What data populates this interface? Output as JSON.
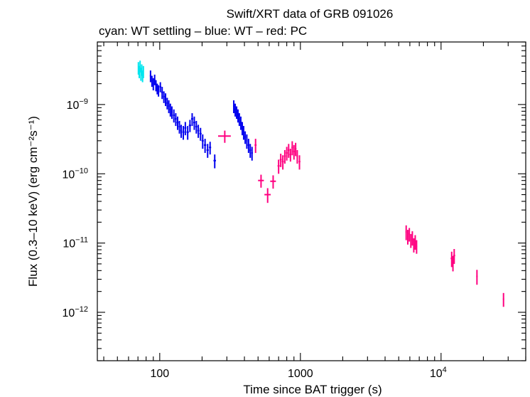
{
  "chart_data": {
    "type": "scatter",
    "title": "Swift/XRT data of GRB 091026",
    "subtitle": "cyan: WT settling – blue: WT – red: PC",
    "xlabel": "Time since BAT trigger (s)",
    "ylabel": "Flux (0.3–10 keV) (erg cm⁻²s⁻¹)",
    "x_scale": "log",
    "y_scale": "log",
    "xlim": [
      36,
      40000
    ],
    "ylim": [
      2e-13,
      8e-09
    ],
    "grid": false,
    "x_ticks": [
      {
        "value": 100,
        "label": "100"
      },
      {
        "value": 1000,
        "label": "1000"
      },
      {
        "value": 10000,
        "base": "10",
        "exp": "4"
      }
    ],
    "y_ticks": [
      {
        "value": 1e-09,
        "base": "10",
        "exp": "−9"
      },
      {
        "value": 1e-10,
        "base": "10",
        "exp": "−10"
      },
      {
        "value": 1e-11,
        "base": "10",
        "exp": "−11"
      },
      {
        "value": 1e-12,
        "base": "10",
        "exp": "−12"
      }
    ],
    "series": [
      {
        "color": "#00e5ee",
        "points": [
          [
            70.5,
            3.4e-09,
            0.5,
            7e-10
          ],
          [
            71.5,
            3e-09,
            0.5,
            6e-10
          ],
          [
            72.5,
            3.6e-09,
            0.5,
            7e-10
          ],
          [
            73.5,
            2.8e-09,
            0.5,
            6e-10
          ],
          [
            74.5,
            3.2e-09,
            0.5,
            6e-10
          ],
          [
            75.5,
            2.6e-09,
            0.5,
            5e-10
          ],
          [
            76.5,
            3e-09,
            0.5,
            6e-10
          ]
        ]
      },
      {
        "color": "#0000ee",
        "points": [
          [
            86,
            2.6e-09,
            1,
            5e-10
          ],
          [
            88,
            2.2e-09,
            1,
            4e-10
          ],
          [
            90,
            2e-09,
            1,
            4e-10
          ],
          [
            92,
            2.3e-09,
            1,
            4e-10
          ],
          [
            94,
            1.9e-09,
            1,
            3.5e-10
          ],
          [
            96,
            1.7e-09,
            1,
            3e-10
          ],
          [
            98,
            1.6e-09,
            1,
            3e-10
          ],
          [
            101,
            1.8e-09,
            1.5,
            3e-10
          ],
          [
            104,
            1.5e-09,
            1.5,
            3e-10
          ],
          [
            107,
            1.3e-09,
            1.5,
            2.5e-10
          ],
          [
            110,
            1.2e-09,
            1.5,
            2.5e-10
          ],
          [
            113,
            1.05e-09,
            1.5,
            2e-10
          ],
          [
            116,
            9.5e-10,
            1.5,
            2e-10
          ],
          [
            119,
            8.5e-10,
            1.5,
            1.8e-10
          ],
          [
            122,
            7.8e-10,
            1.5,
            1.6e-10
          ],
          [
            126,
            7e-10,
            2,
            1.5e-10
          ],
          [
            130,
            6.2e-10,
            2,
            1.3e-10
          ],
          [
            134,
            5.5e-10,
            2,
            1.2e-10
          ],
          [
            138,
            4.8e-10,
            2,
            1e-10
          ],
          [
            142,
            4.2e-10,
            2,
            9e-11
          ],
          [
            147,
            4e-10,
            2.5,
            9e-11
          ],
          [
            152,
            4.6e-10,
            2.5,
            1e-10
          ],
          [
            158,
            4e-10,
            3,
            9e-11
          ],
          [
            164,
            5e-10,
            3,
            1e-10
          ],
          [
            170,
            6.2e-10,
            3,
            1.3e-10
          ],
          [
            176,
            5.5e-10,
            3,
            1.2e-10
          ],
          [
            182,
            4.8e-10,
            3,
            1e-10
          ],
          [
            188,
            4.2e-10,
            3,
            9e-11
          ],
          [
            195,
            3.8e-10,
            3.5,
            8e-11
          ],
          [
            202,
            3e-10,
            3.5,
            7e-11
          ],
          [
            210,
            2.6e-10,
            4,
            6e-11
          ],
          [
            219,
            2.2e-10,
            4,
            5e-11
          ],
          [
            228,
            2.4e-10,
            4,
            5e-11
          ],
          [
            246,
            1.55e-10,
            5,
            3.5e-11
          ],
          [
            336,
            9.5e-10,
            4,
            2e-10
          ],
          [
            344,
            8.5e-10,
            4,
            1.8e-10
          ],
          [
            352,
            7.8e-10,
            4,
            1.6e-10
          ],
          [
            360,
            7e-10,
            4,
            1.5e-10
          ],
          [
            368,
            6.2e-10,
            4,
            1.3e-10
          ],
          [
            377,
            5.5e-10,
            5,
            1.2e-10
          ],
          [
            386,
            4.6e-10,
            5,
            1e-10
          ],
          [
            395,
            4e-10,
            5,
            9e-11
          ],
          [
            405,
            3.4e-10,
            5,
            7e-11
          ],
          [
            416,
            3e-10,
            5,
            7e-11
          ],
          [
            428,
            2.6e-10,
            6,
            6e-11
          ],
          [
            440,
            2.2e-10,
            6,
            5e-11
          ],
          [
            453,
            2e-10,
            6,
            4.5e-11
          ]
        ]
      },
      {
        "color": "#ff0080",
        "points": [
          [
            290,
            3.5e-10,
            30,
            7e-11
          ],
          [
            480,
            2.6e-10,
            8,
            6e-11
          ],
          [
            525,
            8e-11,
            25,
            1.7e-11
          ],
          [
            585,
            5e-11,
            30,
            1.2e-11
          ],
          [
            640,
            7.8e-11,
            30,
            1.7e-11
          ],
          [
            700,
            1.3e-10,
            12,
            3e-11
          ],
          [
            725,
            1.6e-10,
            12,
            3.5e-11
          ],
          [
            750,
            1.5e-10,
            12,
            3.5e-11
          ],
          [
            775,
            1.8e-10,
            12,
            4e-11
          ],
          [
            800,
            2e-10,
            12,
            4.5e-11
          ],
          [
            825,
            2.2e-10,
            12,
            5e-11
          ],
          [
            850,
            1.9e-10,
            12,
            4e-11
          ],
          [
            875,
            2.4e-10,
            12,
            5.5e-11
          ],
          [
            900,
            2.1e-10,
            12,
            5e-11
          ],
          [
            925,
            2.3e-10,
            12,
            5e-11
          ],
          [
            950,
            1.8e-10,
            12,
            4e-11
          ],
          [
            985,
            1.5e-10,
            15,
            3.5e-11
          ],
          [
            5650,
            1.45e-11,
            60,
            3.5e-12
          ],
          [
            5800,
            1.25e-11,
            60,
            3e-12
          ],
          [
            5950,
            1.35e-11,
            60,
            3e-12
          ],
          [
            6100,
            1.1e-11,
            60,
            2.5e-12
          ],
          [
            6250,
            1.2e-11,
            60,
            2.8e-12
          ],
          [
            6400,
            9.5e-12,
            60,
            2.2e-12
          ],
          [
            6550,
            1.05e-11,
            60,
            2.5e-12
          ],
          [
            6700,
            9e-12,
            60,
            2e-12
          ],
          [
            11900,
            6e-12,
            200,
            1.5e-12
          ],
          [
            12150,
            5.2e-12,
            200,
            1.3e-12
          ],
          [
            12400,
            6.6e-12,
            200,
            1.6e-12
          ],
          [
            18000,
            3.3e-12,
            200,
            8e-13
          ],
          [
            27800,
            1.55e-12,
            300,
            3.5e-13
          ]
        ]
      }
    ]
  }
}
